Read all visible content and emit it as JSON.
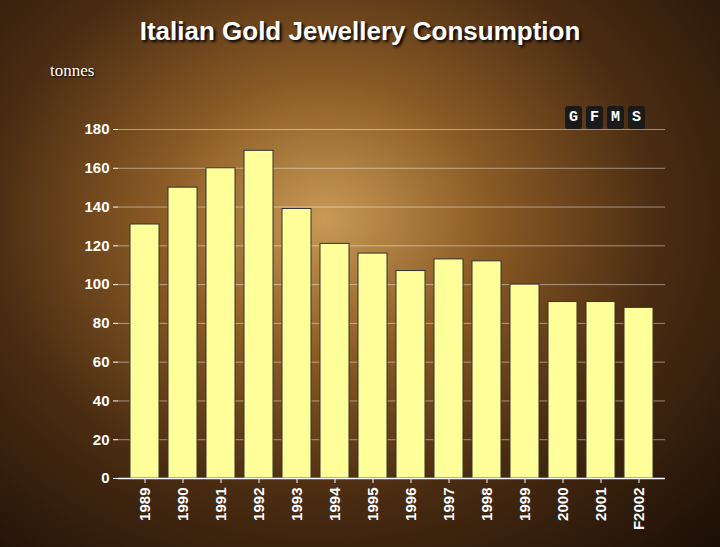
{
  "chart_data": {
    "type": "bar",
    "title": "Italian Gold Jewellery Consumption",
    "y_label": "tonnes",
    "annotations": [
      "GFMS"
    ],
    "categories": [
      "1989",
      "1990",
      "1991",
      "1992",
      "1993",
      "1994",
      "1995",
      "1996",
      "1997",
      "1998",
      "1999",
      "2000",
      "2001",
      "F2002"
    ],
    "values": [
      131,
      150,
      160,
      169,
      139,
      121,
      116,
      107,
      113,
      112,
      100,
      91,
      91,
      88
    ],
    "color": "#ffff99",
    "ylim": [
      0,
      180
    ],
    "yticks": [
      0,
      20,
      40,
      60,
      80,
      100,
      120,
      140,
      160,
      180
    ],
    "grid": true
  }
}
